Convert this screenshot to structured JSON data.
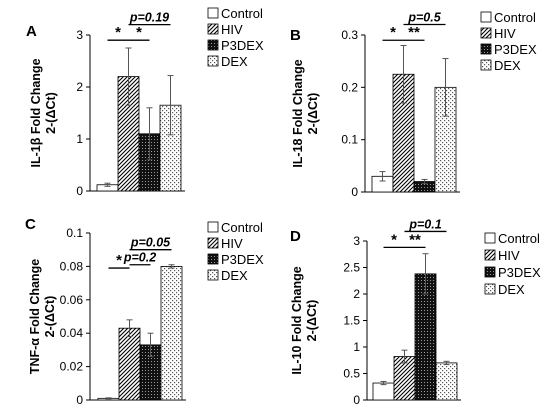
{
  "legend": [
    "Control",
    "HIV",
    "P3DEX",
    "DEX"
  ],
  "chart_data": [
    {
      "type": "bar",
      "panel": "A",
      "ylabel": [
        "IL-1β Fold Change",
        "2-(ΔCt)"
      ],
      "ylim": [
        0,
        3
      ],
      "yticks": [
        "0",
        "1",
        "2",
        "3"
      ],
      "grid": false,
      "legend_position": "top-right",
      "series": [
        {
          "name": "Control",
          "value": 0.12,
          "error": 0.03
        },
        {
          "name": "HIV",
          "value": 2.2,
          "error": 0.55
        },
        {
          "name": "P3DEX",
          "value": 1.1,
          "error": 0.5
        },
        {
          "name": "DEX",
          "value": 1.65,
          "error": 0.57
        }
      ],
      "annotations": [
        {
          "text": "*",
          "from": 0,
          "to": 1,
          "level": 2.9
        },
        {
          "text": "*",
          "from": 1,
          "to": 2,
          "level": 2.9
        },
        {
          "text": "p=0.19",
          "from": 1,
          "to": 3,
          "level": 3.2
        }
      ]
    },
    {
      "type": "bar",
      "panel": "B",
      "ylabel": [
        "IL-18 Fold Change",
        "2-(ΔCt)"
      ],
      "ylim": [
        0,
        0.3
      ],
      "yticks": [
        "0",
        "0.1",
        "0.2",
        "0.3"
      ],
      "grid": false,
      "legend_position": "top-right",
      "series": [
        {
          "name": "Control",
          "value": 0.03,
          "error": 0.009
        },
        {
          "name": "HIV",
          "value": 0.225,
          "error": 0.055
        },
        {
          "name": "P3DEX",
          "value": 0.02,
          "error": 0.004
        },
        {
          "name": "DEX",
          "value": 0.2,
          "error": 0.055
        }
      ],
      "annotations": [
        {
          "text": "*",
          "from": 0,
          "to": 1,
          "level": 0.29
        },
        {
          "text": "**",
          "from": 1,
          "to": 2,
          "level": 0.29
        },
        {
          "text": "p=0.5",
          "from": 1,
          "to": 3,
          "level": 0.32
        }
      ]
    },
    {
      "type": "bar",
      "panel": "C",
      "ylabel": [
        "TNF-α Fold Change",
        "2-(ΔCt)"
      ],
      "ylim": [
        0,
        0.1
      ],
      "yticks": [
        "0",
        "0.02",
        "0.04",
        "0.06",
        "0.08",
        "0.1"
      ],
      "grid": false,
      "legend_position": "top-right",
      "series": [
        {
          "name": "Control",
          "value": 0.001,
          "error": 0.0003
        },
        {
          "name": "HIV",
          "value": 0.043,
          "error": 0.005
        },
        {
          "name": "P3DEX",
          "value": 0.033,
          "error": 0.007
        },
        {
          "name": "DEX",
          "value": 0.08,
          "error": 0.001
        }
      ],
      "annotations": [
        {
          "text": "*",
          "from": 0,
          "to": 1,
          "level": 0.079
        },
        {
          "text": "p=0.2",
          "from": 1,
          "to": 2,
          "level": 0.081
        },
        {
          "text": "p=0.05",
          "from": 1,
          "to": 3,
          "level": 0.09
        }
      ]
    },
    {
      "type": "bar",
      "panel": "D",
      "ylabel": [
        "IL-10 Fold Change",
        "2-(ΔCt)"
      ],
      "ylim": [
        0,
        3
      ],
      "yticks": [
        "0",
        "0.5",
        "1",
        "1.5",
        "2",
        "2.5",
        "3"
      ],
      "grid": false,
      "legend_position": "top-right",
      "series": [
        {
          "name": "Control",
          "value": 0.32,
          "error": 0.03
        },
        {
          "name": "HIV",
          "value": 0.82,
          "error": 0.12
        },
        {
          "name": "P3DEX",
          "value": 2.38,
          "error": 0.38
        },
        {
          "name": "DEX",
          "value": 0.7,
          "error": 0.03
        }
      ],
      "annotations": [
        {
          "text": "*",
          "from": 0,
          "to": 1,
          "level": 2.88
        },
        {
          "text": "**",
          "from": 1,
          "to": 2,
          "level": 2.88
        },
        {
          "text": "p=0.1",
          "from": 1,
          "to": 3,
          "level": 3.18
        }
      ]
    }
  ]
}
